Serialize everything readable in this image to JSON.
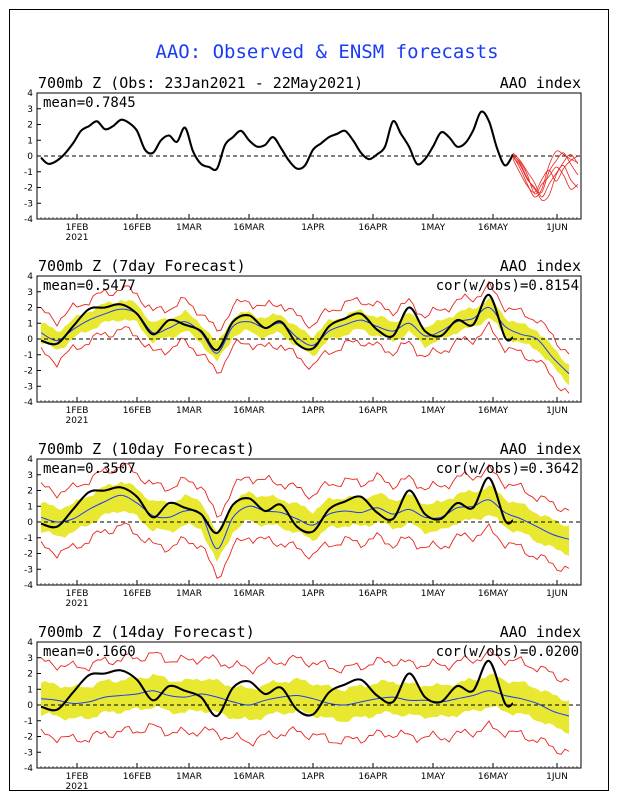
{
  "title": "AAO: Observed & ENSM forecasts",
  "chart_data": [
    {
      "type": "line",
      "title": "700mb Z (Obs: 23Jan2021 - 22May2021)",
      "index_label": "AAO index",
      "stat_label": "mean=0.7845",
      "cor_label": "",
      "ylim": [
        -4,
        4
      ],
      "yticks": [
        "4",
        "3",
        "2",
        "1",
        "0",
        "-1",
        "-2",
        "-3",
        "-4"
      ],
      "xticks": [
        "1FEB",
        "16FEB",
        "1MAR",
        "16MAR",
        "1APR",
        "16APR",
        "1MAY",
        "16MAY",
        "1JUN"
      ],
      "year_label": "2021",
      "series": [
        {
          "role": "observed",
          "color": "#000000",
          "x": [
            0,
            2,
            5,
            8,
            10,
            12,
            14,
            16,
            18,
            20,
            22,
            24,
            26,
            28,
            30,
            32,
            34,
            36,
            38,
            40,
            42,
            44,
            46,
            48,
            50,
            52,
            54,
            56,
            58,
            60,
            62,
            64,
            66,
            68,
            70,
            72,
            74,
            76,
            78,
            80,
            82,
            84,
            86,
            88,
            90,
            92,
            94,
            96,
            98,
            100,
            102,
            104,
            106,
            108,
            110,
            112,
            114,
            116,
            118
          ],
          "values": [
            -0.1,
            -0.5,
            -0.1,
            0.8,
            1.6,
            1.9,
            2.2,
            1.7,
            1.9,
            2.3,
            2.1,
            1.6,
            0.4,
            0.2,
            1.0,
            1.3,
            0.9,
            1.8,
            0.3,
            -0.5,
            -0.7,
            -0.8,
            0.7,
            1.2,
            1.6,
            1.0,
            0.6,
            0.7,
            1.2,
            0.5,
            -0.3,
            -0.8,
            -0.6,
            0.4,
            0.8,
            1.2,
            1.4,
            1.6,
            1.0,
            0.2,
            -0.2,
            0.1,
            0.6,
            2.2,
            1.4,
            0.6,
            -0.5,
            -0.2,
            0.6,
            1.5,
            1.2,
            0.6,
            0.8,
            1.6,
            2.8,
            2.2,
            0.5,
            -0.6,
            0.1
          ]
        }
      ],
      "forecast_members": [
        {
          "start": 118,
          "values": [
            0.1,
            -0.5,
            -1.4,
            -2.1,
            -2.3,
            -1.0,
            -0.3,
            0.2,
            -0.5,
            -1.2
          ]
        },
        {
          "start": 118,
          "values": [
            0.0,
            -0.8,
            -1.8,
            -2.6,
            -2.1,
            -0.6,
            0.3,
            0.1,
            -0.2,
            -0.4
          ]
        },
        {
          "start": 118,
          "values": [
            -0.2,
            -1.1,
            -1.9,
            -2.3,
            -1.5,
            -0.9,
            -1.6,
            -0.8,
            -0.3,
            0.0
          ]
        },
        {
          "start": 118,
          "values": [
            0.2,
            -0.3,
            -1.0,
            -1.7,
            -2.6,
            -1.8,
            -1.1,
            -0.6,
            -1.5,
            -2.0
          ]
        },
        {
          "start": 118,
          "values": [
            -0.1,
            -0.6,
            -1.5,
            -2.0,
            -2.8,
            -2.5,
            -1.2,
            -0.4,
            0.1,
            -0.5
          ]
        },
        {
          "start": 118,
          "values": [
            0.0,
            -0.4,
            -1.2,
            -2.4,
            -1.8,
            -1.3,
            -0.7,
            -1.2,
            -2.1,
            -1.8
          ]
        }
      ]
    },
    {
      "type": "line",
      "title": "700mb Z (7day Forecast)",
      "index_label": "AAO index",
      "stat_label": "mean=0.5477",
      "cor_label": "cor(w/obs)=0.8154",
      "ylim": [
        -4,
        4
      ],
      "yticks": [
        "4",
        "3",
        "2",
        "1",
        "0",
        "-1",
        "-2",
        "-3",
        "-4"
      ],
      "xticks": [
        "1FEB",
        "16FEB",
        "1MAR",
        "16MAR",
        "1APR",
        "16APR",
        "1MAY",
        "16MAY",
        "1JUN"
      ],
      "year_label": "2021",
      "series": [
        {
          "role": "ensemble_mean",
          "color": "#1a3cf5",
          "x": [
            0,
            4,
            8,
            12,
            16,
            20,
            24,
            28,
            32,
            36,
            40,
            44,
            48,
            52,
            56,
            60,
            64,
            68,
            72,
            76,
            80,
            84,
            88,
            92,
            96,
            100,
            104,
            108,
            112,
            116,
            120,
            124,
            128,
            132
          ],
          "values": [
            0.4,
            -0.1,
            0.6,
            1.2,
            1.6,
            1.9,
            1.6,
            0.4,
            0.7,
            1.1,
            0.4,
            -0.9,
            0.8,
            1.1,
            0.7,
            1.0,
            0.1,
            -0.4,
            0.5,
            0.9,
            1.2,
            0.8,
            0.5,
            1.0,
            0.2,
            0.5,
            1.1,
            1.3,
            2.0,
            0.8,
            0.3,
            0.0,
            -1.2,
            -2.2
          ]
        },
        {
          "role": "observed",
          "color": "#000000",
          "x": [
            0,
            4,
            8,
            12,
            16,
            20,
            24,
            28,
            32,
            36,
            40,
            44,
            48,
            52,
            56,
            60,
            64,
            68,
            72,
            76,
            80,
            84,
            88,
            92,
            96,
            100,
            104,
            108,
            112,
            116,
            118
          ],
          "values": [
            -0.1,
            -0.3,
            0.8,
            1.9,
            2.0,
            2.2,
            1.6,
            0.3,
            1.2,
            0.9,
            0.5,
            -0.7,
            1.1,
            1.5,
            0.7,
            1.1,
            -0.3,
            -0.6,
            0.8,
            1.3,
            1.6,
            0.6,
            0.2,
            2.0,
            0.5,
            0.2,
            1.2,
            0.9,
            2.8,
            0.1,
            0.1
          ]
        }
      ],
      "band_width": 0.6,
      "envelope_width": 1.3
    },
    {
      "type": "line",
      "title": "700mb Z (10day Forecast)",
      "index_label": "AAO index",
      "stat_label": "mean=0.3507",
      "cor_label": "cor(w/obs)=0.3642",
      "ylim": [
        -4,
        4
      ],
      "yticks": [
        "4",
        "3",
        "2",
        "1",
        "0",
        "-1",
        "-2",
        "-3",
        "-4"
      ],
      "xticks": [
        "1FEB",
        "16FEB",
        "1MAR",
        "16MAR",
        "1APR",
        "16APR",
        "1MAY",
        "16MAY",
        "1JUN"
      ],
      "year_label": "2021",
      "series": [
        {
          "role": "ensemble_mean",
          "color": "#1a3cf5",
          "x": [
            0,
            4,
            8,
            12,
            16,
            20,
            24,
            28,
            32,
            36,
            40,
            44,
            48,
            52,
            56,
            60,
            64,
            68,
            72,
            76,
            80,
            84,
            88,
            92,
            96,
            100,
            104,
            108,
            112,
            116,
            120,
            124,
            128,
            132
          ],
          "values": [
            0.3,
            0.0,
            0.2,
            0.8,
            1.3,
            1.7,
            1.2,
            0.4,
            0.3,
            0.7,
            0.5,
            -1.7,
            0.3,
            1.0,
            0.7,
            0.6,
            0.2,
            -0.2,
            0.5,
            0.7,
            0.6,
            0.9,
            0.5,
            0.8,
            0.3,
            0.3,
            0.9,
            1.0,
            1.4,
            0.6,
            0.2,
            -0.3,
            -0.8,
            -1.1
          ]
        },
        {
          "role": "observed",
          "color": "#000000",
          "x": [
            0,
            4,
            8,
            12,
            16,
            20,
            24,
            28,
            32,
            36,
            40,
            44,
            48,
            52,
            56,
            60,
            64,
            68,
            72,
            76,
            80,
            84,
            88,
            92,
            96,
            100,
            104,
            108,
            112,
            116,
            118
          ],
          "values": [
            -0.1,
            -0.3,
            0.8,
            1.9,
            2.0,
            2.2,
            1.6,
            0.3,
            1.2,
            0.9,
            0.5,
            -0.7,
            1.1,
            1.5,
            0.7,
            1.1,
            -0.3,
            -0.6,
            0.8,
            1.3,
            1.6,
            0.6,
            0.2,
            2.0,
            0.5,
            0.2,
            1.2,
            0.9,
            2.8,
            0.1,
            0.1
          ]
        }
      ],
      "band_width": 0.9,
      "envelope_width": 1.9
    },
    {
      "type": "line",
      "title": "700mb Z (14day Forecast)",
      "index_label": "AAO index",
      "stat_label": "mean=0.1660",
      "cor_label": "cor(w/obs)=0.0200",
      "ylim": [
        -4,
        4
      ],
      "yticks": [
        "4",
        "3",
        "2",
        "1",
        "0",
        "-1",
        "-2",
        "-3",
        "-4"
      ],
      "xticks": [
        "1FEB",
        "16FEB",
        "1MAR",
        "16MAR",
        "1APR",
        "16APR",
        "1MAY",
        "16MAY",
        "1JUN"
      ],
      "year_label": "2021",
      "series": [
        {
          "role": "ensemble_mean",
          "color": "#1a3cf5",
          "x": [
            0,
            4,
            8,
            12,
            16,
            20,
            24,
            28,
            32,
            36,
            40,
            44,
            48,
            52,
            56,
            60,
            64,
            68,
            72,
            76,
            80,
            84,
            88,
            92,
            96,
            100,
            104,
            108,
            112,
            116,
            120,
            124,
            128,
            132
          ],
          "values": [
            0.4,
            0.3,
            0.1,
            0.2,
            0.5,
            0.6,
            0.7,
            0.9,
            0.6,
            0.5,
            0.7,
            0.5,
            0.2,
            0.0,
            0.3,
            0.5,
            0.6,
            0.4,
            0.1,
            0.0,
            0.2,
            0.4,
            0.5,
            0.3,
            0.3,
            0.2,
            0.4,
            0.6,
            0.9,
            0.6,
            0.4,
            0.1,
            -0.4,
            -0.7
          ]
        },
        {
          "role": "observed",
          "color": "#000000",
          "x": [
            0,
            4,
            8,
            12,
            16,
            20,
            24,
            28,
            32,
            36,
            40,
            44,
            48,
            52,
            56,
            60,
            64,
            68,
            72,
            76,
            80,
            84,
            88,
            92,
            96,
            100,
            104,
            108,
            112,
            116,
            118
          ],
          "values": [
            -0.1,
            -0.3,
            0.8,
            1.9,
            2.0,
            2.2,
            1.6,
            0.3,
            1.2,
            0.9,
            0.5,
            -0.7,
            1.1,
            1.5,
            0.7,
            1.1,
            -0.3,
            -0.6,
            0.8,
            1.3,
            1.6,
            0.6,
            0.2,
            2.0,
            0.5,
            0.2,
            1.2,
            0.9,
            2.8,
            0.1,
            0.1
          ]
        }
      ],
      "band_width": 1.0,
      "envelope_width": 2.3
    }
  ],
  "x_axis": {
    "xmin": -1,
    "xmax": 135,
    "tick_positions": [
      9,
      24,
      37,
      52,
      68,
      83,
      98,
      113,
      129
    ]
  },
  "colors": {
    "observed": "#000000",
    "ensemble_mean": "#1a3cf5",
    "band": "#e8e830",
    "envelope": "#e8241f",
    "title": "#1a3cf5"
  }
}
